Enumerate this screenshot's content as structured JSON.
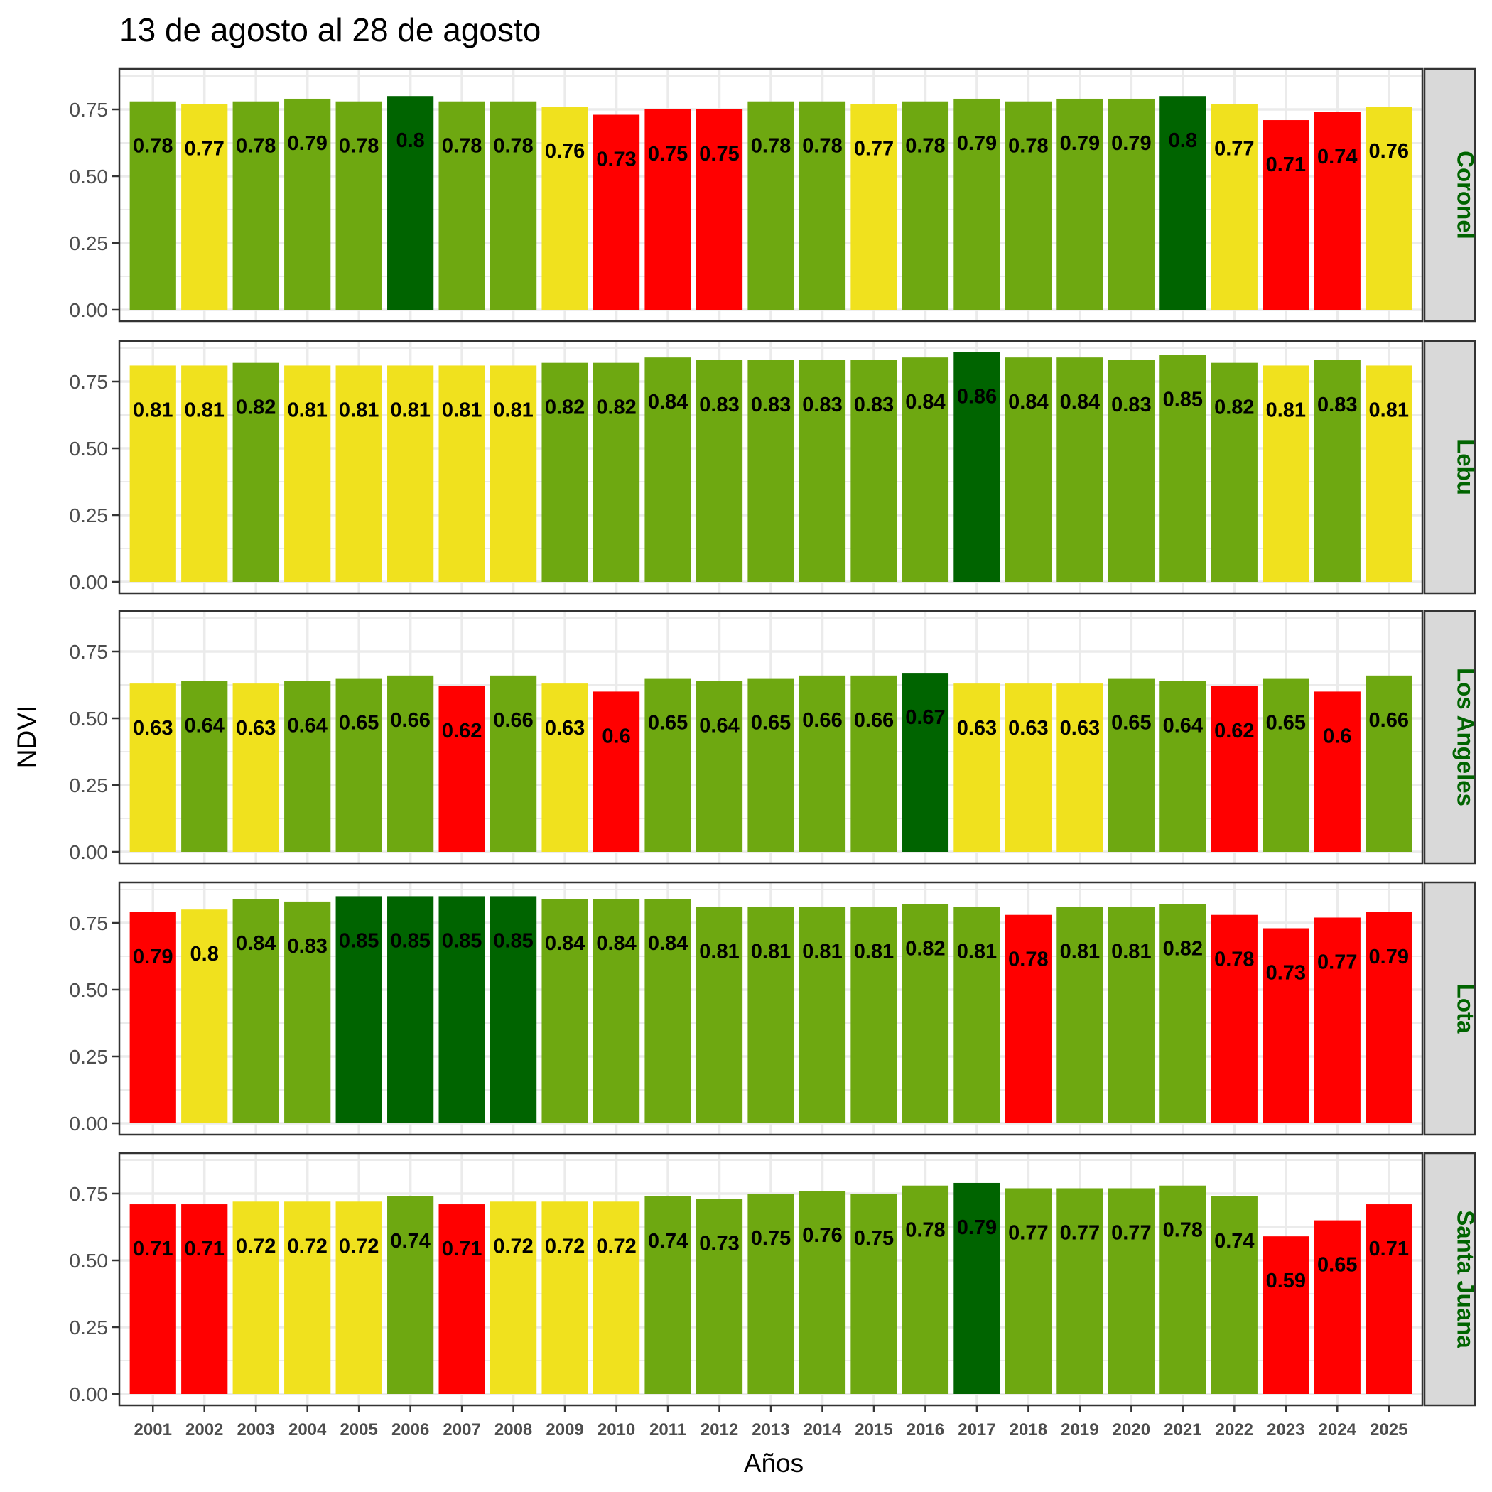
{
  "chart_data": {
    "type": "bar",
    "title": "13 de agosto al 28 de agosto",
    "xlabel": "Años",
    "ylabel": "NDVI",
    "ylim": [
      0,
      0.89
    ],
    "yticks": [
      "0.00",
      "0.25",
      "0.50",
      "0.75"
    ],
    "ytick_values": [
      0,
      0.25,
      0.5,
      0.75
    ],
    "grid": true,
    "facet": "rows",
    "categories": [
      "2001",
      "2002",
      "2003",
      "2004",
      "2005",
      "2006",
      "2007",
      "2008",
      "2009",
      "2010",
      "2011",
      "2012",
      "2013",
      "2014",
      "2015",
      "2016",
      "2017",
      "2018",
      "2019",
      "2020",
      "2021",
      "2022",
      "2023",
      "2024",
      "2025"
    ],
    "color_scale": {
      "dark_green": "#006400",
      "green": "#6ea811",
      "yellow": "#f0e11e",
      "red": "#ff0000"
    },
    "series": [
      {
        "name": "Coronel",
        "values": [
          0.78,
          0.77,
          0.78,
          0.79,
          0.78,
          0.8,
          0.78,
          0.78,
          0.76,
          0.73,
          0.75,
          0.75,
          0.78,
          0.78,
          0.77,
          0.78,
          0.79,
          0.78,
          0.79,
          0.79,
          0.8,
          0.77,
          0.71,
          0.74,
          0.76
        ],
        "labels": [
          "0.78",
          "0.77",
          "0.78",
          "0.79",
          "0.78",
          "0.8",
          "0.78",
          "0.78",
          "0.76",
          "0.73",
          "0.75",
          "0.75",
          "0.78",
          "0.78",
          "0.77",
          "0.78",
          "0.79",
          "0.78",
          "0.79",
          "0.79",
          "0.8",
          "0.77",
          "0.71",
          "0.74",
          "0.76"
        ],
        "colors": [
          "green",
          "yellow",
          "green",
          "green",
          "green",
          "dark_green",
          "green",
          "green",
          "yellow",
          "red",
          "red",
          "red",
          "green",
          "green",
          "yellow",
          "green",
          "green",
          "green",
          "green",
          "green",
          "dark_green",
          "yellow",
          "red",
          "red",
          "yellow"
        ]
      },
      {
        "name": "Lebu",
        "values": [
          0.81,
          0.81,
          0.82,
          0.81,
          0.81,
          0.81,
          0.81,
          0.81,
          0.82,
          0.82,
          0.84,
          0.83,
          0.83,
          0.83,
          0.83,
          0.84,
          0.86,
          0.84,
          0.84,
          0.83,
          0.85,
          0.82,
          0.81,
          0.83,
          0.81
        ],
        "labels": [
          "0.81",
          "0.81",
          "0.82",
          "0.81",
          "0.81",
          "0.81",
          "0.81",
          "0.81",
          "0.82",
          "0.82",
          "0.84",
          "0.83",
          "0.83",
          "0.83",
          "0.83",
          "0.84",
          "0.86",
          "0.84",
          "0.84",
          "0.83",
          "0.85",
          "0.82",
          "0.81",
          "0.83",
          "0.81"
        ],
        "colors": [
          "yellow",
          "yellow",
          "green",
          "yellow",
          "yellow",
          "yellow",
          "yellow",
          "yellow",
          "green",
          "green",
          "green",
          "green",
          "green",
          "green",
          "green",
          "green",
          "dark_green",
          "green",
          "green",
          "green",
          "green",
          "green",
          "yellow",
          "green",
          "yellow"
        ]
      },
      {
        "name": "Los Angeles",
        "values": [
          0.63,
          0.64,
          0.63,
          0.64,
          0.65,
          0.66,
          0.62,
          0.66,
          0.63,
          0.6,
          0.65,
          0.64,
          0.65,
          0.66,
          0.66,
          0.67,
          0.63,
          0.63,
          0.63,
          0.65,
          0.64,
          0.62,
          0.65,
          0.6,
          0.66
        ],
        "labels": [
          "0.63",
          "0.64",
          "0.63",
          "0.64",
          "0.65",
          "0.66",
          "0.62",
          "0.66",
          "0.63",
          "0.6",
          "0.65",
          "0.64",
          "0.65",
          "0.66",
          "0.66",
          "0.67",
          "0.63",
          "0.63",
          "0.63",
          "0.65",
          "0.64",
          "0.62",
          "0.65",
          "0.6",
          "0.66"
        ],
        "colors": [
          "yellow",
          "green",
          "yellow",
          "green",
          "green",
          "green",
          "red",
          "green",
          "yellow",
          "red",
          "green",
          "green",
          "green",
          "green",
          "green",
          "dark_green",
          "yellow",
          "yellow",
          "yellow",
          "green",
          "green",
          "red",
          "green",
          "red",
          "green"
        ]
      },
      {
        "name": "Lota",
        "values": [
          0.79,
          0.8,
          0.84,
          0.83,
          0.85,
          0.85,
          0.85,
          0.85,
          0.84,
          0.84,
          0.84,
          0.81,
          0.81,
          0.81,
          0.81,
          0.82,
          0.81,
          0.78,
          0.81,
          0.81,
          0.82,
          0.78,
          0.73,
          0.77,
          0.79
        ],
        "labels": [
          "0.79",
          "0.8",
          "0.84",
          "0.83",
          "0.85",
          "0.85",
          "0.85",
          "0.85",
          "0.84",
          "0.84",
          "0.84",
          "0.81",
          "0.81",
          "0.81",
          "0.81",
          "0.82",
          "0.81",
          "0.78",
          "0.81",
          "0.81",
          "0.82",
          "0.78",
          "0.73",
          "0.77",
          "0.79"
        ],
        "colors": [
          "red",
          "yellow",
          "green",
          "green",
          "dark_green",
          "dark_green",
          "dark_green",
          "dark_green",
          "green",
          "green",
          "green",
          "green",
          "green",
          "green",
          "green",
          "green",
          "green",
          "red",
          "green",
          "green",
          "green",
          "red",
          "red",
          "red",
          "red"
        ]
      },
      {
        "name": "Santa Juana",
        "values": [
          0.71,
          0.71,
          0.72,
          0.72,
          0.72,
          0.74,
          0.71,
          0.72,
          0.72,
          0.72,
          0.74,
          0.73,
          0.75,
          0.76,
          0.75,
          0.78,
          0.79,
          0.77,
          0.77,
          0.77,
          0.78,
          0.74,
          0.59,
          0.65,
          0.71
        ],
        "labels": [
          "0.71",
          "0.71",
          "0.72",
          "0.72",
          "0.72",
          "0.74",
          "0.71",
          "0.72",
          "0.72",
          "0.72",
          "0.74",
          "0.73",
          "0.75",
          "0.76",
          "0.75",
          "0.78",
          "0.79",
          "0.77",
          "0.77",
          "0.77",
          "0.78",
          "0.74",
          "0.59",
          "0.65",
          "0.71"
        ],
        "colors": [
          "red",
          "red",
          "yellow",
          "yellow",
          "yellow",
          "green",
          "red",
          "yellow",
          "yellow",
          "yellow",
          "green",
          "green",
          "green",
          "green",
          "green",
          "green",
          "dark_green",
          "green",
          "green",
          "green",
          "green",
          "green",
          "red",
          "red",
          "red"
        ]
      }
    ]
  }
}
